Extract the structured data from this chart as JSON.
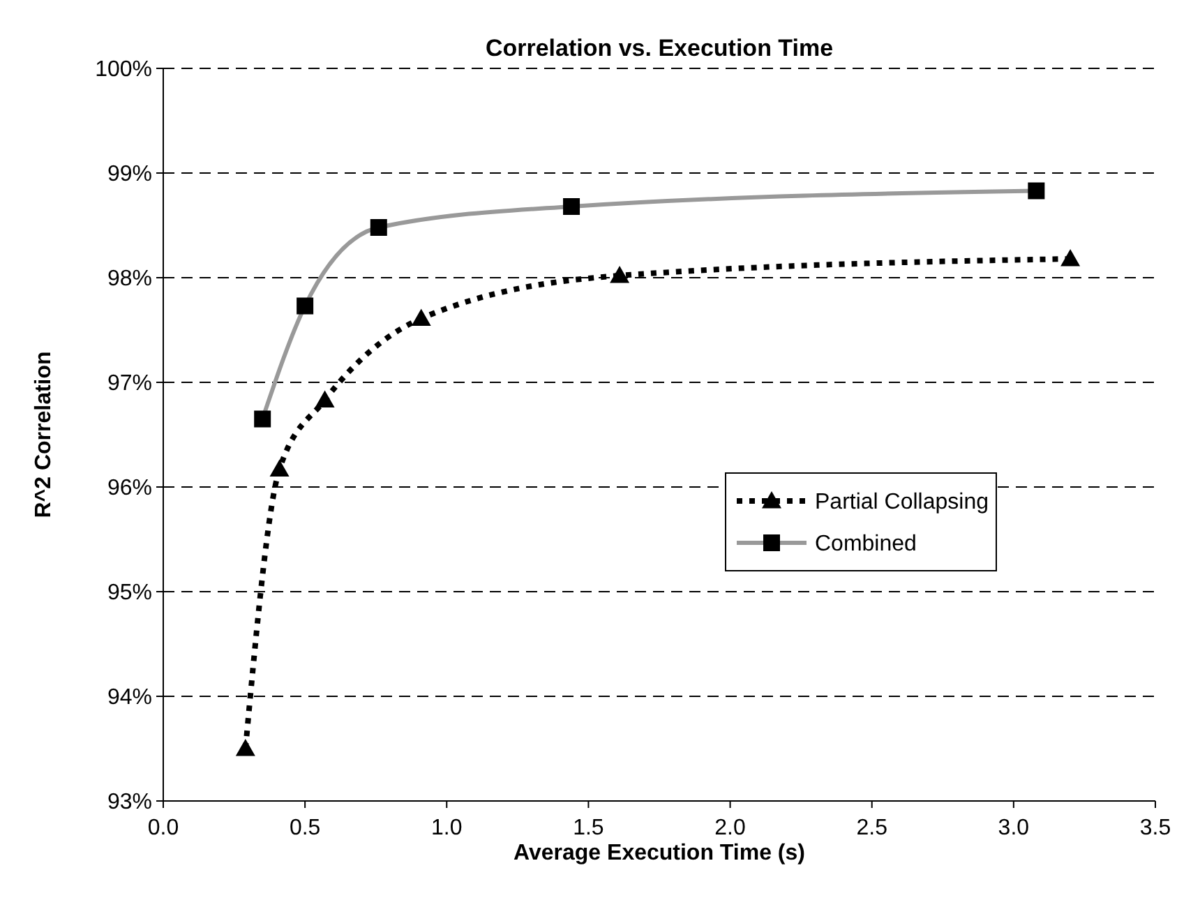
{
  "chart_data": {
    "type": "line",
    "title": "Correlation vs. Execution Time",
    "xlabel": "Average Execution Time (s)",
    "ylabel": "R^2 Correlation",
    "xlim": [
      0,
      3.5
    ],
    "xticks": [
      {
        "value": 0,
        "label": "0.0"
      },
      {
        "value": 0.5,
        "label": "0.5"
      },
      {
        "value": 1,
        "label": "1.0"
      },
      {
        "value": 1.5,
        "label": "1.5"
      },
      {
        "value": 2,
        "label": "2.0"
      },
      {
        "value": 2.5,
        "label": "2.5"
      },
      {
        "value": 3,
        "label": "3.0"
      },
      {
        "value": 3.5,
        "label": "3.5"
      }
    ],
    "ylim": [
      93,
      100
    ],
    "yticks": [
      {
        "value": 93,
        "label": "93%"
      },
      {
        "value": 94,
        "label": "94%"
      },
      {
        "value": 95,
        "label": "95%"
      },
      {
        "value": 96,
        "label": "96%"
      },
      {
        "value": 97,
        "label": "97%"
      },
      {
        "value": 98,
        "label": "98%"
      },
      {
        "value": 99,
        "label": "99%"
      },
      {
        "value": 100,
        "label": "100%"
      }
    ],
    "grid": "y",
    "legend": "right",
    "series": [
      {
        "name": "Partial Collapsing",
        "color": "#000000",
        "marker": "triangle",
        "line_style": "dashed",
        "x": [
          0.29,
          0.41,
          0.57,
          0.91,
          1.61,
          3.2
        ],
        "values": [
          93.5,
          96.17,
          96.83,
          97.61,
          98.02,
          98.18
        ]
      },
      {
        "name": "Combined",
        "color": "#999999",
        "marker": "square",
        "line_style": "solid",
        "x": [
          0.35,
          0.5,
          0.76,
          1.44,
          3.08
        ],
        "values": [
          96.65,
          97.73,
          98.48,
          98.68,
          98.83
        ]
      }
    ]
  }
}
